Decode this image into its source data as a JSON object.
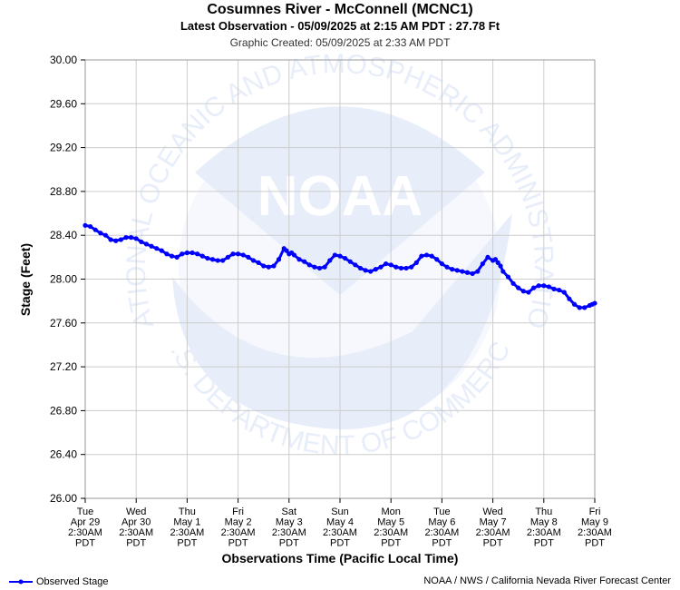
{
  "header": {
    "title": "Cosumnes River - McConnell (MCNC1)",
    "subtitle": "Latest Observation - 05/09/2025 at 2:15 AM PDT : 27.78 Ft",
    "created": "Graphic Created: 05/09/2025 at 2:33 AM PDT"
  },
  "footer": {
    "legend_label": "Observed Stage",
    "credit": "NOAA / NWS / California Nevada River Forecast Center"
  },
  "colors": {
    "series": "#0000ff",
    "grid": "#cccccc",
    "watermark": "#e7eefa"
  },
  "watermark": {
    "logo_text": "NOAA",
    "top_text": "NATIONAL OCEANIC AND ATMOSPHERIC ADMINISTRATION",
    "bottom_text": "U.S. DEPARTMENT OF COMMERCE"
  },
  "chart_data": {
    "type": "line",
    "title": "Cosumnes River - McConnell (MCNC1)",
    "xlabel": "Observations Time (Pacific Local Time)",
    "ylabel": "Stage (Feet)",
    "ylim": [
      26.0,
      30.0
    ],
    "yticks": [
      "26.00",
      "26.40",
      "26.80",
      "27.20",
      "27.60",
      "28.00",
      "28.40",
      "28.80",
      "29.20",
      "29.60",
      "30.00"
    ],
    "xlim": [
      0,
      10
    ],
    "xticks": [
      [
        "Tue",
        "Apr 29",
        "2:30AM",
        "PDT"
      ],
      [
        "Wed",
        "Apr 30",
        "2:30AM",
        "PDT"
      ],
      [
        "Thu",
        "May 1",
        "2:30AM",
        "PDT"
      ],
      [
        "Fri",
        "May 2",
        "2:30AM",
        "PDT"
      ],
      [
        "Sat",
        "May 3",
        "2:30AM",
        "PDT"
      ],
      [
        "Sun",
        "May 4",
        "2:30AM",
        "PDT"
      ],
      [
        "Mon",
        "May 5",
        "2:30AM",
        "PDT"
      ],
      [
        "Tue",
        "May 6",
        "2:30AM",
        "PDT"
      ],
      [
        "Wed",
        "May 7",
        "2:30AM",
        "PDT"
      ],
      [
        "Thu",
        "May 8",
        "2:30AM",
        "PDT"
      ],
      [
        "Fri",
        "May 9",
        "2:30AM",
        "PDT"
      ]
    ],
    "grid": true,
    "legend": "bottom-left",
    "series": [
      {
        "name": "Observed Stage",
        "x": [
          0,
          0.1,
          0.2,
          0.3,
          0.4,
          0.5,
          0.6,
          0.7,
          0.8,
          0.9,
          1.0,
          1.1,
          1.2,
          1.3,
          1.4,
          1.5,
          1.6,
          1.7,
          1.8,
          1.9,
          2.0,
          2.1,
          2.2,
          2.3,
          2.4,
          2.5,
          2.6,
          2.7,
          2.8,
          2.9,
          3.0,
          3.1,
          3.2,
          3.3,
          3.4,
          3.5,
          3.6,
          3.7,
          3.8,
          3.9,
          3.95,
          4.0,
          4.05,
          4.1,
          4.2,
          4.3,
          4.4,
          4.5,
          4.6,
          4.7,
          4.8,
          4.9,
          5.0,
          5.1,
          5.2,
          5.3,
          5.4,
          5.5,
          5.6,
          5.7,
          5.8,
          5.9,
          6.0,
          6.1,
          6.2,
          6.3,
          6.4,
          6.5,
          6.6,
          6.7,
          6.8,
          6.9,
          7.0,
          7.1,
          7.2,
          7.3,
          7.4,
          7.5,
          7.6,
          7.7,
          7.8,
          7.9,
          8.0,
          8.05,
          8.1,
          8.15,
          8.2,
          8.3,
          8.4,
          8.5,
          8.6,
          8.7,
          8.8,
          8.9,
          9.0,
          9.1,
          9.2,
          9.3,
          9.4,
          9.5,
          9.6,
          9.7,
          9.8,
          9.9,
          9.95,
          10.0
        ],
        "y": [
          28.49,
          28.48,
          28.45,
          28.42,
          28.4,
          28.36,
          28.35,
          28.36,
          28.38,
          28.38,
          28.37,
          28.34,
          28.32,
          28.3,
          28.28,
          28.26,
          28.23,
          28.21,
          28.2,
          28.23,
          28.24,
          28.24,
          28.23,
          28.21,
          28.19,
          28.18,
          28.17,
          28.17,
          28.2,
          28.23,
          28.23,
          28.22,
          28.2,
          28.17,
          28.15,
          28.12,
          28.11,
          28.12,
          28.18,
          28.28,
          28.26,
          28.23,
          28.24,
          28.22,
          28.18,
          28.16,
          28.13,
          28.11,
          28.1,
          28.11,
          28.17,
          28.22,
          28.21,
          28.19,
          28.16,
          28.13,
          28.1,
          28.08,
          28.07,
          28.09,
          28.11,
          28.14,
          28.13,
          28.11,
          28.1,
          28.1,
          28.11,
          28.15,
          28.21,
          28.22,
          28.21,
          28.18,
          28.14,
          28.11,
          28.09,
          28.08,
          28.07,
          28.06,
          28.05,
          28.07,
          28.14,
          28.2,
          28.17,
          28.18,
          28.15,
          28.12,
          28.07,
          28.02,
          27.96,
          27.92,
          27.89,
          27.88,
          27.92,
          27.94,
          27.94,
          27.93,
          27.91,
          27.9,
          27.88,
          27.82,
          27.77,
          27.74,
          27.74,
          27.76,
          27.77,
          27.78
        ]
      }
    ]
  }
}
